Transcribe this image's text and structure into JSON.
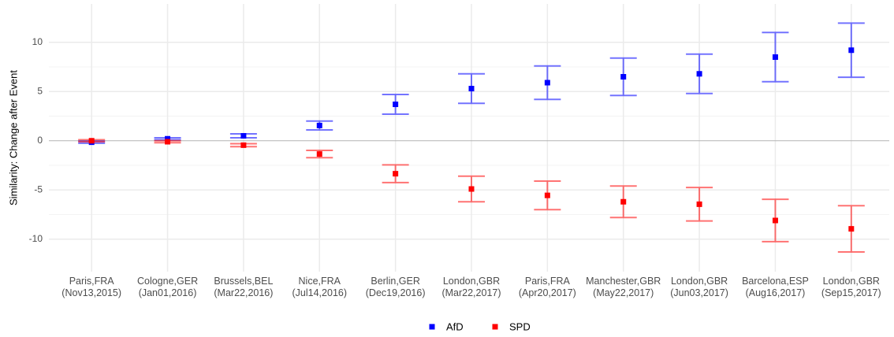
{
  "chart_data": {
    "type": "errorbar",
    "y_label": "Similarity: Change after Event",
    "categories": [
      "Paris,FRA\n(Nov13,2015)",
      "Cologne,GER\n(Jan01,2016)",
      "Brussels,BEL\n(Mar22,2016)",
      "Nice,FRA\n(Jul14,2016)",
      "Berlin,GER\n(Dec19,2016)",
      "London,GBR\n(Mar22,2017)",
      "Paris,FRA\n(Apr20,2017)",
      "Manchester,GBR\n(May22,2017)",
      "London,GBR\n(Jun03,2017)",
      "Barcelona,ESP\n(Aug16,2017)",
      "London,GBR\n(Sep15,2017)"
    ],
    "series": [
      {
        "name": "AfD",
        "color": "#0000ff",
        "values": [
          -0.15,
          0.2,
          0.5,
          1.55,
          3.7,
          5.3,
          5.9,
          6.5,
          6.8,
          8.5,
          9.2
        ],
        "errors": [
          0.1,
          0.1,
          0.2,
          0.45,
          1.0,
          1.5,
          1.7,
          1.9,
          2.0,
          2.5,
          2.75
        ]
      },
      {
        "name": "SPD",
        "color": "#ff0000",
        "values": [
          0.0,
          -0.1,
          -0.45,
          -1.35,
          -3.35,
          -4.9,
          -5.55,
          -6.2,
          -6.45,
          -8.1,
          -8.95
        ],
        "errors": [
          0.1,
          0.1,
          0.15,
          0.37,
          0.9,
          1.3,
          1.45,
          1.6,
          1.7,
          2.15,
          2.35
        ]
      }
    ],
    "ylim": [
      -13.3,
      13.9
    ],
    "yticks": [
      -10,
      -5,
      0,
      5,
      10
    ],
    "grid": true,
    "legend": "bottom"
  }
}
